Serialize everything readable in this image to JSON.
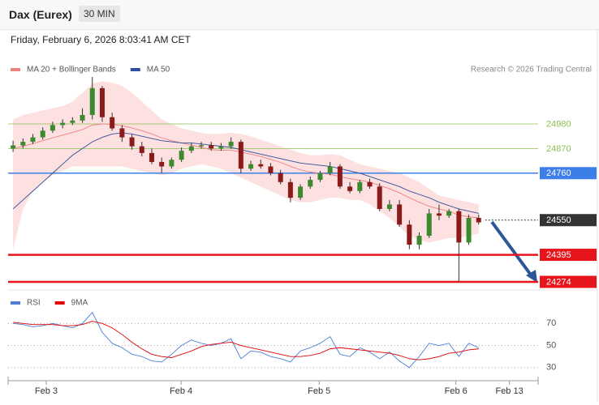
{
  "header": {
    "title": "Dax (Eurex)",
    "timeframe": "30 MIN",
    "date": "Friday, February 6, 2026 8:03:41 AM CET"
  },
  "chart_data": [
    {
      "type": "candlestick",
      "credit": "Research © 2026 Trading Central",
      "xlim": [
        -0.5,
        53
      ],
      "ylim": [
        24245,
        25190
      ],
      "up_color": "#3c8a2e",
      "down_color": "#8b1a1a",
      "open": [
        24870,
        24884,
        24900,
        24920,
        24950,
        24975,
        24985,
        24995,
        25020,
        25140,
        25010,
        24960,
        24920,
        24880,
        24850,
        24810,
        24790,
        24820,
        24860,
        24880,
        24885,
        24870,
        24880,
        24900,
        24780,
        24800,
        24790,
        24760,
        24720,
        24650,
        24700,
        24730,
        24760,
        24790,
        24700,
        24680,
        24720,
        24700,
        24600,
        24620,
        24530,
        24440,
        24480,
        24580,
        24570,
        24590,
        24450,
        24560
      ],
      "high": [
        24905,
        24915,
        24935,
        24965,
        24990,
        25000,
        25010,
        25050,
        25190,
        25150,
        25030,
        24975,
        24935,
        24900,
        24870,
        24830,
        24830,
        24875,
        24895,
        24900,
        24900,
        24895,
        24920,
        24910,
        24815,
        24820,
        24805,
        24775,
        24735,
        24710,
        24745,
        24770,
        24810,
        24800,
        24720,
        24730,
        24735,
        24715,
        24640,
        24640,
        24550,
        24495,
        24600,
        24620,
        24600,
        24600,
        24575,
        24575
      ],
      "low": [
        24855,
        24870,
        24890,
        24910,
        24940,
        24960,
        24975,
        24985,
        25000,
        24990,
        24950,
        24900,
        24865,
        24835,
        24800,
        24760,
        24780,
        24810,
        24850,
        24870,
        24860,
        24860,
        24870,
        24760,
        24770,
        24780,
        24750,
        24710,
        24630,
        24640,
        24690,
        24720,
        24750,
        24690,
        24670,
        24670,
        24690,
        24590,
        24590,
        24520,
        24420,
        24420,
        24470,
        24550,
        24560,
        24274,
        24440,
        24530
      ],
      "close": [
        24884,
        24900,
        24920,
        24950,
        24975,
        24985,
        24995,
        25020,
        25140,
        25010,
        24960,
        24920,
        24880,
        24850,
        24810,
        24790,
        24820,
        24860,
        24880,
        24885,
        24870,
        24880,
        24900,
        24780,
        24800,
        24790,
        24760,
        24720,
        24650,
        24700,
        24730,
        24760,
        24790,
        24700,
        24680,
        24720,
        24700,
        24600,
        24620,
        24530,
        24440,
        24480,
        24580,
        24570,
        24590,
        24450,
        24560,
        24540
      ],
      "series": [
        {
          "name": "MA 20 + Bollinger Bands",
          "color": "#f08080",
          "band_color": "#fde0e0",
          "values": [
            24870,
            24880,
            24892,
            24905,
            24918,
            24930,
            24942,
            24955,
            24975,
            24980,
            24978,
            24972,
            24962,
            24950,
            24935,
            24918,
            24905,
            24895,
            24885,
            24875,
            24865,
            24862,
            24862,
            24855,
            24845,
            24835,
            24822,
            24808,
            24790,
            24775,
            24765,
            24760,
            24755,
            24745,
            24735,
            24728,
            24720,
            24705,
            24690,
            24672,
            24650,
            24630,
            24612,
            24600,
            24590,
            24572,
            24565,
            24560
          ],
          "upper": [
            25000,
            25020,
            25030,
            25040,
            25050,
            25060,
            25080,
            25120,
            25160,
            25170,
            25165,
            25150,
            25120,
            25080,
            25040,
            25000,
            24980,
            24960,
            24950,
            24940,
            24935,
            24935,
            24940,
            24935,
            24925,
            24910,
            24895,
            24880,
            24865,
            24850,
            24840,
            24840,
            24845,
            24840,
            24820,
            24800,
            24790,
            24780,
            24770,
            24760,
            24740,
            24720,
            24690,
            24660,
            24650,
            24640,
            24630,
            24620
          ],
          "lower": [
            24420,
            24600,
            24680,
            24720,
            24750,
            24770,
            24790,
            24790,
            24790,
            24790,
            24790,
            24790,
            24780,
            24770,
            24760,
            24750,
            24760,
            24780,
            24790,
            24800,
            24790,
            24780,
            24760,
            24740,
            24720,
            24700,
            24680,
            24660,
            24640,
            24630,
            24630,
            24640,
            24650,
            24650,
            24640,
            24640,
            24620,
            24590,
            24560,
            24520,
            24480,
            24460,
            24450,
            24460,
            24470,
            24470,
            24480,
            24490
          ]
        },
        {
          "name": "MA 50",
          "color": "#2f4f9a",
          "values": [
            24600,
            24640,
            24680,
            24720,
            24760,
            24800,
            24840,
            24870,
            24900,
            24920,
            24935,
            24940,
            24935,
            24925,
            24915,
            24905,
            24900,
            24895,
            24895,
            24890,
            24885,
            24880,
            24875,
            24865,
            24855,
            24845,
            24835,
            24825,
            24815,
            24805,
            24800,
            24795,
            24790,
            24780,
            24770,
            24760,
            24745,
            24730,
            24715,
            24700,
            24680,
            24665,
            24650,
            24630,
            24615,
            24600,
            24590,
            24580
          ]
        }
      ],
      "levels": [
        {
          "value": 24980,
          "color": "#8cc152",
          "kind": "thin"
        },
        {
          "value": 24870,
          "color": "#8cc152",
          "kind": "thin"
        },
        {
          "value": 24760,
          "color": "#3d7fe8",
          "kind": "line-box"
        },
        {
          "value": 24550,
          "color": "#333333",
          "kind": "dotted-box"
        },
        {
          "value": 24395,
          "color": "#e8141b",
          "kind": "thick-box"
        },
        {
          "value": 24274,
          "color": "#e8141b",
          "kind": "thick-box"
        }
      ]
    },
    {
      "type": "line",
      "xlim": [
        -0.5,
        53
      ],
      "ylim": [
        21,
        82
      ],
      "yticks": [
        30,
        50,
        70
      ],
      "grid": true,
      "xticks": [
        {
          "value": 3.35,
          "label": "Feb 3"
        },
        {
          "value": 16.96,
          "label": "Feb 4"
        },
        {
          "value": 30.9,
          "label": "Feb 5"
        },
        {
          "value": 44.7,
          "label": "Feb 6"
        },
        {
          "value": 50.1,
          "label": "Feb 13"
        }
      ],
      "series": [
        {
          "name": "RSI",
          "color": "#4a7fd4",
          "values": [
            70,
            69,
            67,
            68,
            70,
            68,
            66,
            70,
            80,
            62,
            52,
            48,
            42,
            40,
            36,
            35,
            42,
            50,
            55,
            52,
            50,
            52,
            56,
            38,
            45,
            44,
            40,
            38,
            35,
            45,
            48,
            52,
            58,
            42,
            40,
            48,
            44,
            38,
            44,
            36,
            30,
            40,
            52,
            50,
            52,
            40,
            52,
            48
          ]
        },
        {
          "name": "9MA",
          "color": "#e00000",
          "values": [
            71,
            70,
            69,
            69,
            69,
            68,
            68,
            69,
            72,
            70,
            66,
            60,
            53,
            47,
            42,
            40,
            39,
            42,
            45,
            49,
            51,
            52,
            53,
            50,
            48,
            46,
            44,
            42,
            40,
            40,
            41,
            43,
            47,
            48,
            47,
            46,
            45,
            44,
            43,
            41,
            38,
            37,
            38,
            40,
            43,
            44,
            46,
            47
          ]
        }
      ]
    }
  ]
}
